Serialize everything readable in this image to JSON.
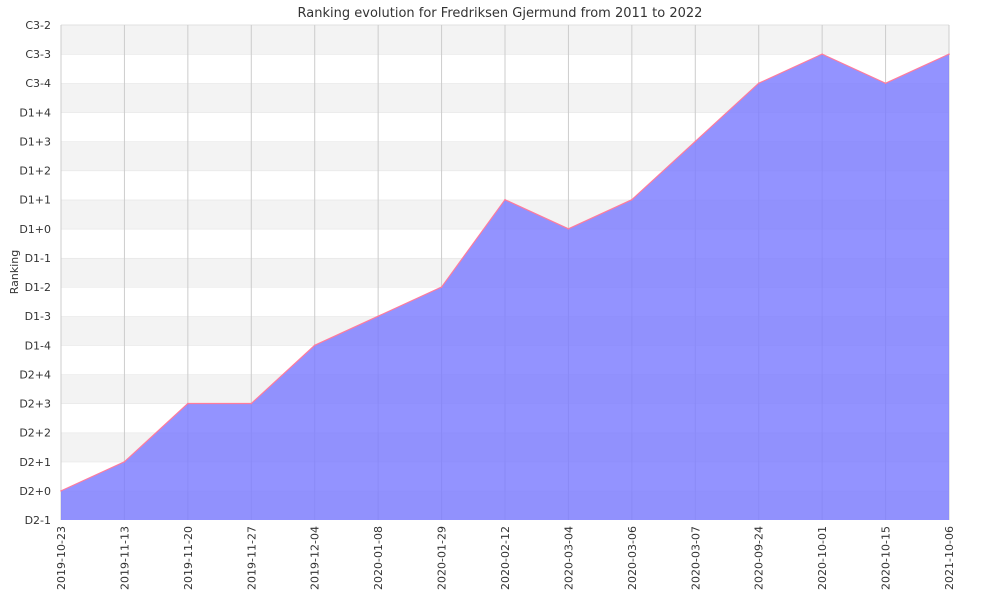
{
  "chart_data": {
    "type": "area",
    "title": "Ranking evolution for Fredriksen Gjermund from 2011 to 2022",
    "xlabel": "",
    "ylabel": "Ranking",
    "y_categories": [
      "D2-1",
      "D2+0",
      "D2+1",
      "D2+2",
      "D2+3",
      "D2+4",
      "D1-4",
      "D1-3",
      "D1-2",
      "D1-1",
      "D1+0",
      "D1+1",
      "D1+2",
      "D1+3",
      "D1+4",
      "C3-4",
      "C3-3",
      "C3-2"
    ],
    "x": [
      "2019-10-23",
      "2019-11-13",
      "2019-11-20",
      "2019-11-27",
      "2019-12-04",
      "2020-01-08",
      "2020-01-29",
      "2020-02-12",
      "2020-03-04",
      "2020-03-06",
      "2020-03-07",
      "2020-09-24",
      "2020-10-01",
      "2020-10-15",
      "2021-10-06"
    ],
    "series": [
      {
        "values": [
          "D2+0",
          "D2+1",
          "D2+3",
          "D2+3",
          "D1-4",
          "D1-3",
          "D1-2",
          "D1+1",
          "D1+0",
          "D1+1",
          "D1+3",
          "C3-4",
          "C3-3",
          "C3-4",
          "C3-3"
        ]
      }
    ],
    "grid": true,
    "fill_color": "#7b7bff",
    "line_color": "#ff7b9c",
    "band_colors": [
      "#ffffff",
      "#f3f3f3"
    ],
    "grid_color": "#cccccc"
  }
}
